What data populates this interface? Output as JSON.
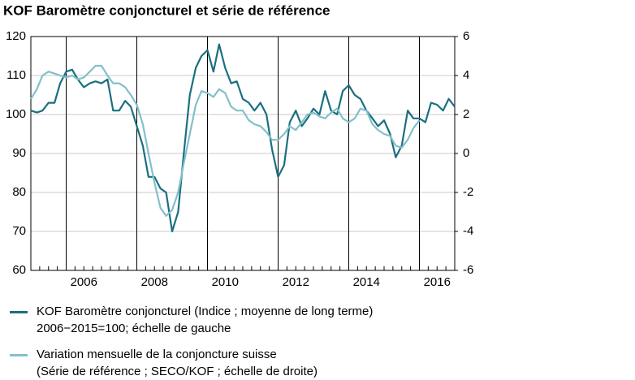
{
  "chart_data": {
    "type": "line",
    "title": "KOF Baromètre conjoncturel et série de référence",
    "x": [
      2005.0,
      2005.17,
      2005.33,
      2005.5,
      2005.67,
      2005.83,
      2006.0,
      2006.17,
      2006.33,
      2006.5,
      2006.67,
      2006.83,
      2007.0,
      2007.17,
      2007.33,
      2007.5,
      2007.67,
      2007.83,
      2008.0,
      2008.17,
      2008.33,
      2008.5,
      2008.67,
      2008.83,
      2009.0,
      2009.17,
      2009.33,
      2009.5,
      2009.67,
      2009.83,
      2010.0,
      2010.17,
      2010.33,
      2010.5,
      2010.67,
      2010.83,
      2011.0,
      2011.17,
      2011.33,
      2011.5,
      2011.67,
      2011.83,
      2012.0,
      2012.17,
      2012.33,
      2012.5,
      2012.67,
      2012.83,
      2013.0,
      2013.17,
      2013.33,
      2013.5,
      2013.67,
      2013.83,
      2014.0,
      2014.17,
      2014.33,
      2014.5,
      2014.67,
      2014.83,
      2015.0,
      2015.17,
      2015.33,
      2015.5,
      2015.67,
      2015.83,
      2016.0,
      2016.17,
      2016.33,
      2016.5,
      2016.67,
      2016.83,
      2017.0
    ],
    "series": [
      {
        "name": "KOF Baromètre conjoncturel (Indice ; moyenne de long terme)\n2006−2015=100; échelle de gauche",
        "color": "#1b6f80",
        "axis": "y",
        "values": [
          101,
          100.5,
          101,
          103,
          103,
          108,
          111,
          111.5,
          109,
          107,
          108,
          108.5,
          108,
          109,
          101,
          101,
          103.5,
          102,
          97,
          92,
          84,
          84,
          81,
          80,
          70,
          75,
          90,
          105,
          112,
          115,
          116.5,
          111,
          118,
          112,
          108,
          108.5,
          104,
          103,
          101,
          103,
          100,
          91,
          84,
          87,
          98,
          101,
          97,
          99,
          101.5,
          100,
          106,
          101,
          100,
          106,
          107.5,
          105,
          104,
          101,
          99,
          97,
          98.5,
          95,
          89,
          92,
          101,
          99,
          99,
          98,
          103,
          102.5,
          101,
          104,
          102
        ]
      },
      {
        "name": "Variation mensuelle de la conjoncture suisse\n(Série de référence ; SECO/KOF ; échelle de droite)",
        "color": "#82c0cb",
        "axis": "y2",
        "values": [
          2.8,
          3.3,
          4.0,
          4.2,
          4.1,
          4.0,
          3.9,
          4.0,
          3.8,
          3.9,
          4.2,
          4.5,
          4.5,
          4.0,
          3.6,
          3.6,
          3.4,
          3.0,
          2.5,
          1.5,
          0,
          -1.5,
          -2.8,
          -3.2,
          -2.9,
          -2,
          -0.5,
          1,
          2.5,
          3.2,
          3.1,
          2.9,
          3.3,
          3.1,
          2.4,
          2.2,
          2.2,
          1.7,
          1.5,
          1.4,
          1.1,
          0.7,
          0.7,
          1.0,
          1.4,
          1.2,
          1.6,
          2.0,
          2.1,
          1.9,
          1.8,
          2.1,
          2.3,
          1.8,
          1.6,
          1.8,
          2.3,
          2.2,
          1.5,
          1.2,
          1.0,
          0.9,
          0.4,
          0.3,
          0.7,
          1.3,
          1.7,
          null,
          null,
          null,
          null,
          null,
          null
        ]
      }
    ],
    "xlim": [
      2005,
      2017
    ],
    "xticks": [
      2006,
      2008,
      2010,
      2012,
      2014,
      2016
    ],
    "ylim": [
      60,
      120
    ],
    "yticks": [
      60,
      70,
      80,
      90,
      100,
      110,
      120
    ],
    "y2lim": [
      -6,
      6
    ],
    "y2ticks": [
      -6,
      -4,
      -2,
      0,
      2,
      4,
      6
    ],
    "grid": true
  }
}
